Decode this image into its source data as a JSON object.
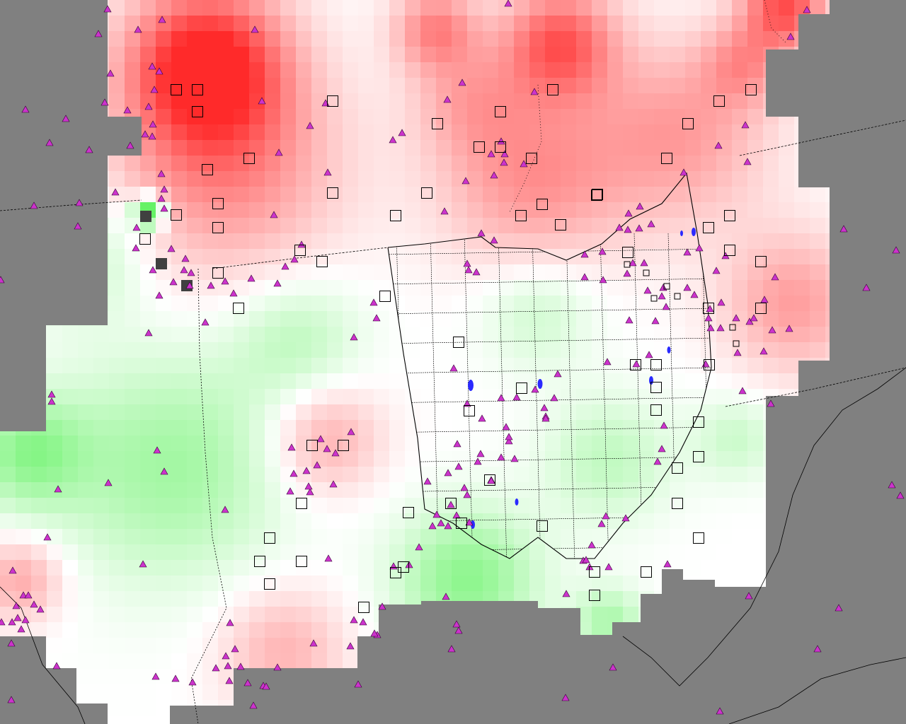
{
  "map": {
    "background_color": "#808080",
    "no_data_color": "#808080",
    "neutral_color": "#ffffff",
    "positive_color": "#ff2a2a",
    "negative_color": "#33ee33",
    "boundary_color": "#000000",
    "water_color": "#2a2aff",
    "marker_types": [
      {
        "icon": "triangle-icon",
        "fill": "#cc33cc",
        "stroke": "#330033"
      },
      {
        "icon": "square-icon",
        "fill": "none",
        "stroke": "#000000"
      }
    ]
  }
}
